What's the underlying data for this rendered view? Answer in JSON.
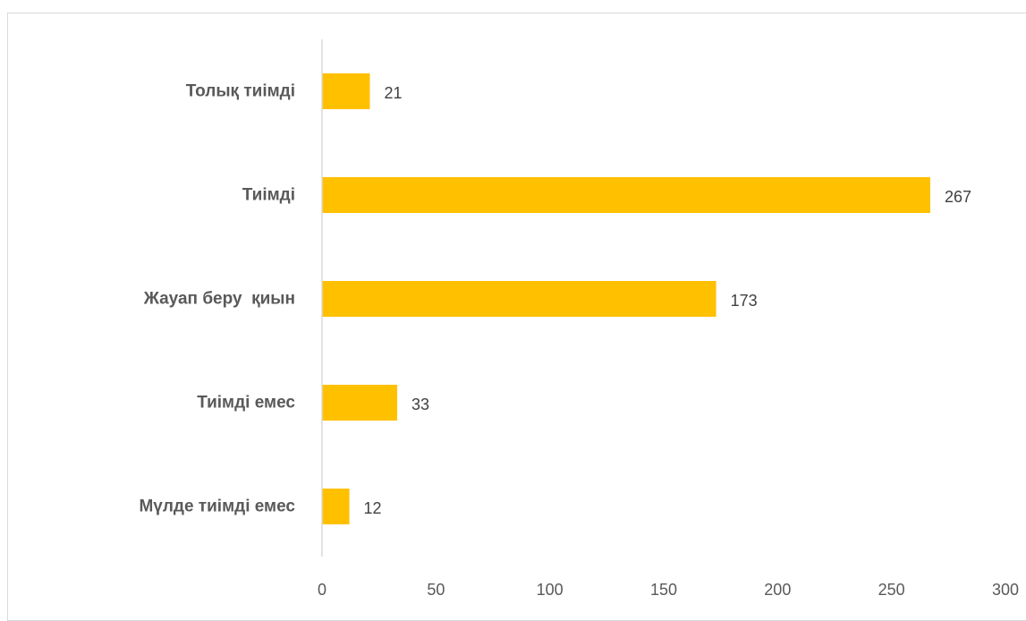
{
  "chart_data": {
    "type": "bar",
    "orientation": "horizontal",
    "categories": [
      "Толық тиімді",
      "Тиімді",
      "Жауап беру  қиын",
      "Тиімді емес",
      "Мүлде тиімді емес"
    ],
    "values": [
      21,
      267,
      173,
      33,
      12
    ],
    "data_labels": [
      "21",
      "267",
      "173",
      "33",
      "12"
    ],
    "xlim": [
      0,
      300
    ],
    "xticks": [
      0,
      50,
      100,
      150,
      200,
      250,
      300
    ],
    "xtick_labels": [
      "0",
      "50",
      "100",
      "150",
      "200",
      "250",
      "300"
    ],
    "title": "",
    "xlabel": "",
    "ylabel": "",
    "grid": false,
    "legend": "none",
    "bar_color": "#FFC000",
    "axis_color": "#d9d9d9"
  }
}
